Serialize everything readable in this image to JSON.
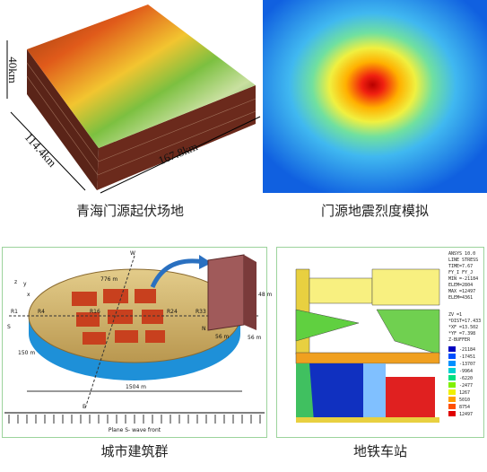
{
  "panels": [
    {
      "caption": "青海门源起伏场地",
      "labels": [
        "40km",
        "114.4km",
        "167.8km"
      ]
    },
    {
      "caption": "门源地震烈度模拟"
    },
    {
      "caption": "城市建筑群",
      "labels": [
        "776 m",
        "1504 m",
        "150 m",
        "R1",
        "R4",
        "R16",
        "R24",
        "R33",
        "S",
        "N",
        "W",
        "E",
        "56 m",
        "56 m",
        "48 m",
        "Plane S- wave front",
        "x",
        "y",
        "z"
      ]
    },
    {
      "caption": "地铁车站",
      "info": [
        "ANSYS 10.0",
        "LINE STRESS",
        "TIME=7.67",
        "FY_I   FY_J",
        "MIN =-21184",
        "ELEM=2804",
        "MAX =12497",
        "ELEM=4361",
        "ZV =1",
        "*DIST=17.433",
        "*XF =13.502",
        "*YF =7.398",
        "Z-BUFFER"
      ],
      "legend": [
        "-21184",
        "-17451",
        "-13707",
        "-9964",
        "-6220",
        "-2477",
        "1267",
        "5010",
        "8754",
        "12497"
      ]
    }
  ]
}
